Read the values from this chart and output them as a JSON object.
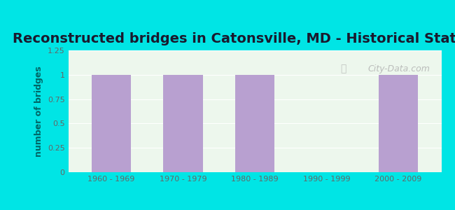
{
  "title": "Reconstructed bridges in Catonsville, MD - Historical Statistics",
  "categories": [
    "1960 - 1969",
    "1970 - 1979",
    "1980 - 1989",
    "1990 - 1999",
    "2000 - 2009"
  ],
  "values": [
    1,
    1,
    1,
    0,
    1
  ],
  "bar_color": "#b8a0d0",
  "ylabel": "number of bridges",
  "ylim": [
    0,
    1.25
  ],
  "yticks": [
    0,
    0.25,
    0.5,
    0.75,
    1,
    1.25
  ],
  "ytick_labels": [
    "0",
    "0.25",
    "0.5",
    "0.75",
    "1",
    "1.25"
  ],
  "background_color": "#00e5e5",
  "plot_bg_color": "#edf7ed",
  "title_fontsize": 14,
  "axis_label_color": "#006666",
  "tick_label_color": "#666666",
  "watermark": "City-Data.com"
}
